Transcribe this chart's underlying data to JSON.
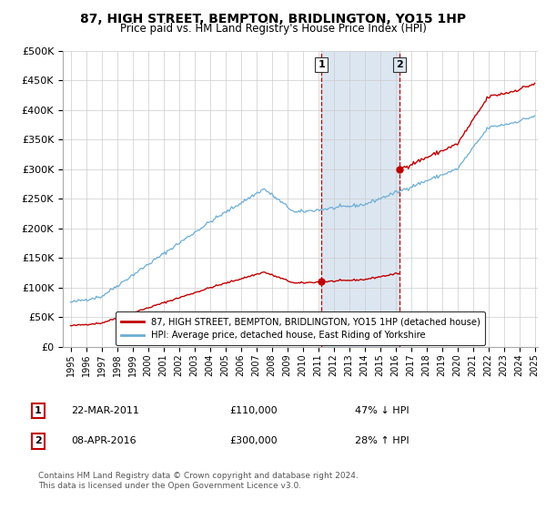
{
  "title": "87, HIGH STREET, BEMPTON, BRIDLINGTON, YO15 1HP",
  "subtitle": "Price paid vs. HM Land Registry's House Price Index (HPI)",
  "sale1_date": "22-MAR-2011",
  "sale1_price": 110000,
  "sale1_label": "1",
  "sale1_pct": "47% ↓ HPI",
  "sale1_year": 2011.22,
  "sale2_date": "08-APR-2016",
  "sale2_price": 300000,
  "sale2_label": "2",
  "sale2_pct": "28% ↑ HPI",
  "sale2_year": 2016.27,
  "hpi_line_color": "#6baed6",
  "price_line_color": "#c00000",
  "legend_label_price": "87, HIGH STREET, BEMPTON, BRIDLINGTON, YO15 1HP (detached house)",
  "legend_label_hpi": "HPI: Average price, detached house, East Riding of Yorkshire",
  "footer": "Contains HM Land Registry data © Crown copyright and database right 2024.\nThis data is licensed under the Open Government Licence v3.0.",
  "ylim": [
    0,
    500000
  ],
  "yticks": [
    0,
    50000,
    100000,
    150000,
    200000,
    250000,
    300000,
    350000,
    400000,
    450000,
    500000
  ],
  "xlim_start": 1995,
  "xlim_end": 2025,
  "background_color": "#ffffff",
  "chart_bg_color": "#ffffff",
  "grid_color": "#cccccc",
  "highlight_region_color": "#dce6f1"
}
